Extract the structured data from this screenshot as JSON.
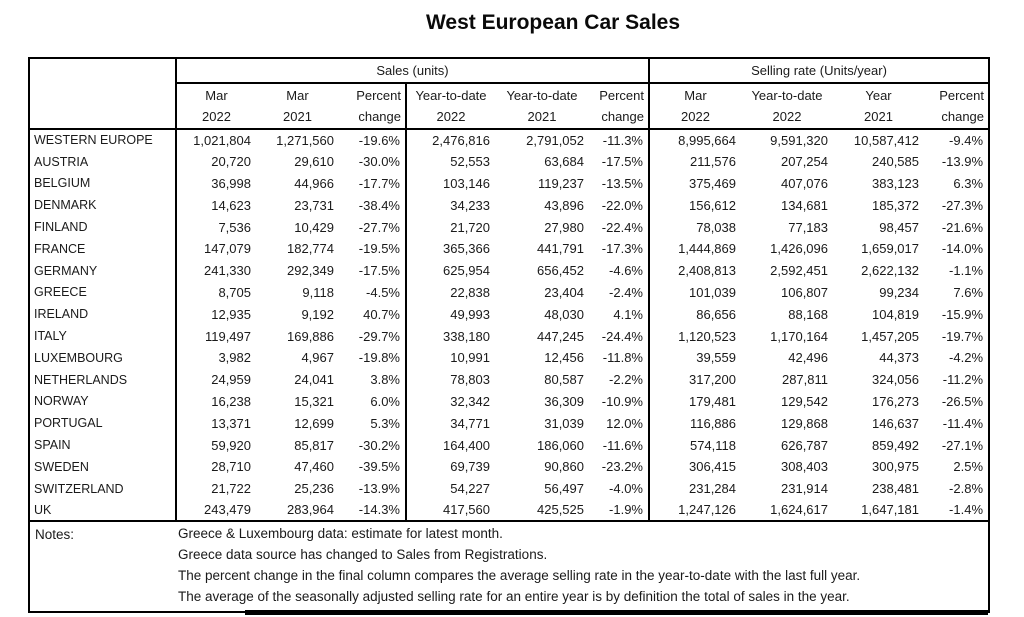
{
  "title": "West European Car Sales",
  "table": {
    "group_headers": {
      "sales": "Sales (units)",
      "selling_rate": "Selling rate (Units/year)"
    },
    "columns": [
      {
        "line1": "Mar",
        "line2": "2022"
      },
      {
        "line1": "Mar",
        "line2": "2021"
      },
      {
        "line1": "Percent",
        "line2": "change"
      },
      {
        "line1": "Year-to-date",
        "line2": "2022"
      },
      {
        "line1": "Year-to-date",
        "line2": "2021"
      },
      {
        "line1": "Percent",
        "line2": "change"
      },
      {
        "line1": "Mar",
        "line2": "2022"
      },
      {
        "line1": "Year-to-date",
        "line2": "2022"
      },
      {
        "line1": "Year",
        "line2": "2021"
      },
      {
        "line1": "Percent",
        "line2": "change"
      }
    ],
    "rows": [
      {
        "country": "WESTERN EUROPE",
        "values": [
          "1,021,804",
          "1,271,560",
          "-19.6%",
          "2,476,816",
          "2,791,052",
          "-11.3%",
          "8,995,664",
          "9,591,320",
          "10,587,412",
          "-9.4%"
        ]
      },
      {
        "country": "AUSTRIA",
        "values": [
          "20,720",
          "29,610",
          "-30.0%",
          "52,553",
          "63,684",
          "-17.5%",
          "211,576",
          "207,254",
          "240,585",
          "-13.9%"
        ]
      },
      {
        "country": "BELGIUM",
        "values": [
          "36,998",
          "44,966",
          "-17.7%",
          "103,146",
          "119,237",
          "-13.5%",
          "375,469",
          "407,076",
          "383,123",
          "6.3%"
        ]
      },
      {
        "country": "DENMARK",
        "values": [
          "14,623",
          "23,731",
          "-38.4%",
          "34,233",
          "43,896",
          "-22.0%",
          "156,612",
          "134,681",
          "185,372",
          "-27.3%"
        ]
      },
      {
        "country": "FINLAND",
        "values": [
          "7,536",
          "10,429",
          "-27.7%",
          "21,720",
          "27,980",
          "-22.4%",
          "78,038",
          "77,183",
          "98,457",
          "-21.6%"
        ]
      },
      {
        "country": "FRANCE",
        "values": [
          "147,079",
          "182,774",
          "-19.5%",
          "365,366",
          "441,791",
          "-17.3%",
          "1,444,869",
          "1,426,096",
          "1,659,017",
          "-14.0%"
        ]
      },
      {
        "country": "GERMANY",
        "values": [
          "241,330",
          "292,349",
          "-17.5%",
          "625,954",
          "656,452",
          "-4.6%",
          "2,408,813",
          "2,592,451",
          "2,622,132",
          "-1.1%"
        ]
      },
      {
        "country": "GREECE",
        "values": [
          "8,705",
          "9,118",
          "-4.5%",
          "22,838",
          "23,404",
          "-2.4%",
          "101,039",
          "106,807",
          "99,234",
          "7.6%"
        ]
      },
      {
        "country": "IRELAND",
        "values": [
          "12,935",
          "9,192",
          "40.7%",
          "49,993",
          "48,030",
          "4.1%",
          "86,656",
          "88,168",
          "104,819",
          "-15.9%"
        ]
      },
      {
        "country": "ITALY",
        "values": [
          "119,497",
          "169,886",
          "-29.7%",
          "338,180",
          "447,245",
          "-24.4%",
          "1,120,523",
          "1,170,164",
          "1,457,205",
          "-19.7%"
        ]
      },
      {
        "country": "LUXEMBOURG",
        "values": [
          "3,982",
          "4,967",
          "-19.8%",
          "10,991",
          "12,456",
          "-11.8%",
          "39,559",
          "42,496",
          "44,373",
          "-4.2%"
        ]
      },
      {
        "country": "NETHERLANDS",
        "values": [
          "24,959",
          "24,041",
          "3.8%",
          "78,803",
          "80,587",
          "-2.2%",
          "317,200",
          "287,811",
          "324,056",
          "-11.2%"
        ]
      },
      {
        "country": "NORWAY",
        "values": [
          "16,238",
          "15,321",
          "6.0%",
          "32,342",
          "36,309",
          "-10.9%",
          "179,481",
          "129,542",
          "176,273",
          "-26.5%"
        ]
      },
      {
        "country": "PORTUGAL",
        "values": [
          "13,371",
          "12,699",
          "5.3%",
          "34,771",
          "31,039",
          "12.0%",
          "116,886",
          "129,868",
          "146,637",
          "-11.4%"
        ]
      },
      {
        "country": "SPAIN",
        "values": [
          "59,920",
          "85,817",
          "-30.2%",
          "164,400",
          "186,060",
          "-11.6%",
          "574,118",
          "626,787",
          "859,492",
          "-27.1%"
        ]
      },
      {
        "country": "SWEDEN",
        "values": [
          "28,710",
          "47,460",
          "-39.5%",
          "69,739",
          "90,860",
          "-23.2%",
          "306,415",
          "308,403",
          "300,975",
          "2.5%"
        ]
      },
      {
        "country": "SWITZERLAND",
        "values": [
          "21,722",
          "25,236",
          "-13.9%",
          "54,227",
          "56,497",
          "-4.0%",
          "231,284",
          "231,914",
          "238,481",
          "-2.8%"
        ]
      },
      {
        "country": "UK",
        "values": [
          "243,479",
          "283,964",
          "-14.3%",
          "417,560",
          "425,525",
          "-1.9%",
          "1,247,126",
          "1,624,617",
          "1,647,181",
          "-1.4%"
        ]
      }
    ]
  },
  "notes": {
    "label": "Notes:",
    "lines": [
      "Greece & Luxembourg data: estimate for latest month.",
      "Greece data source has changed to Sales from Registrations.",
      "The percent change in the final column compares the average selling rate in the year-to-date with the last full year.",
      "The average of the seasonally adjusted selling rate for an entire year is by definition the total of sales in the year."
    ]
  }
}
